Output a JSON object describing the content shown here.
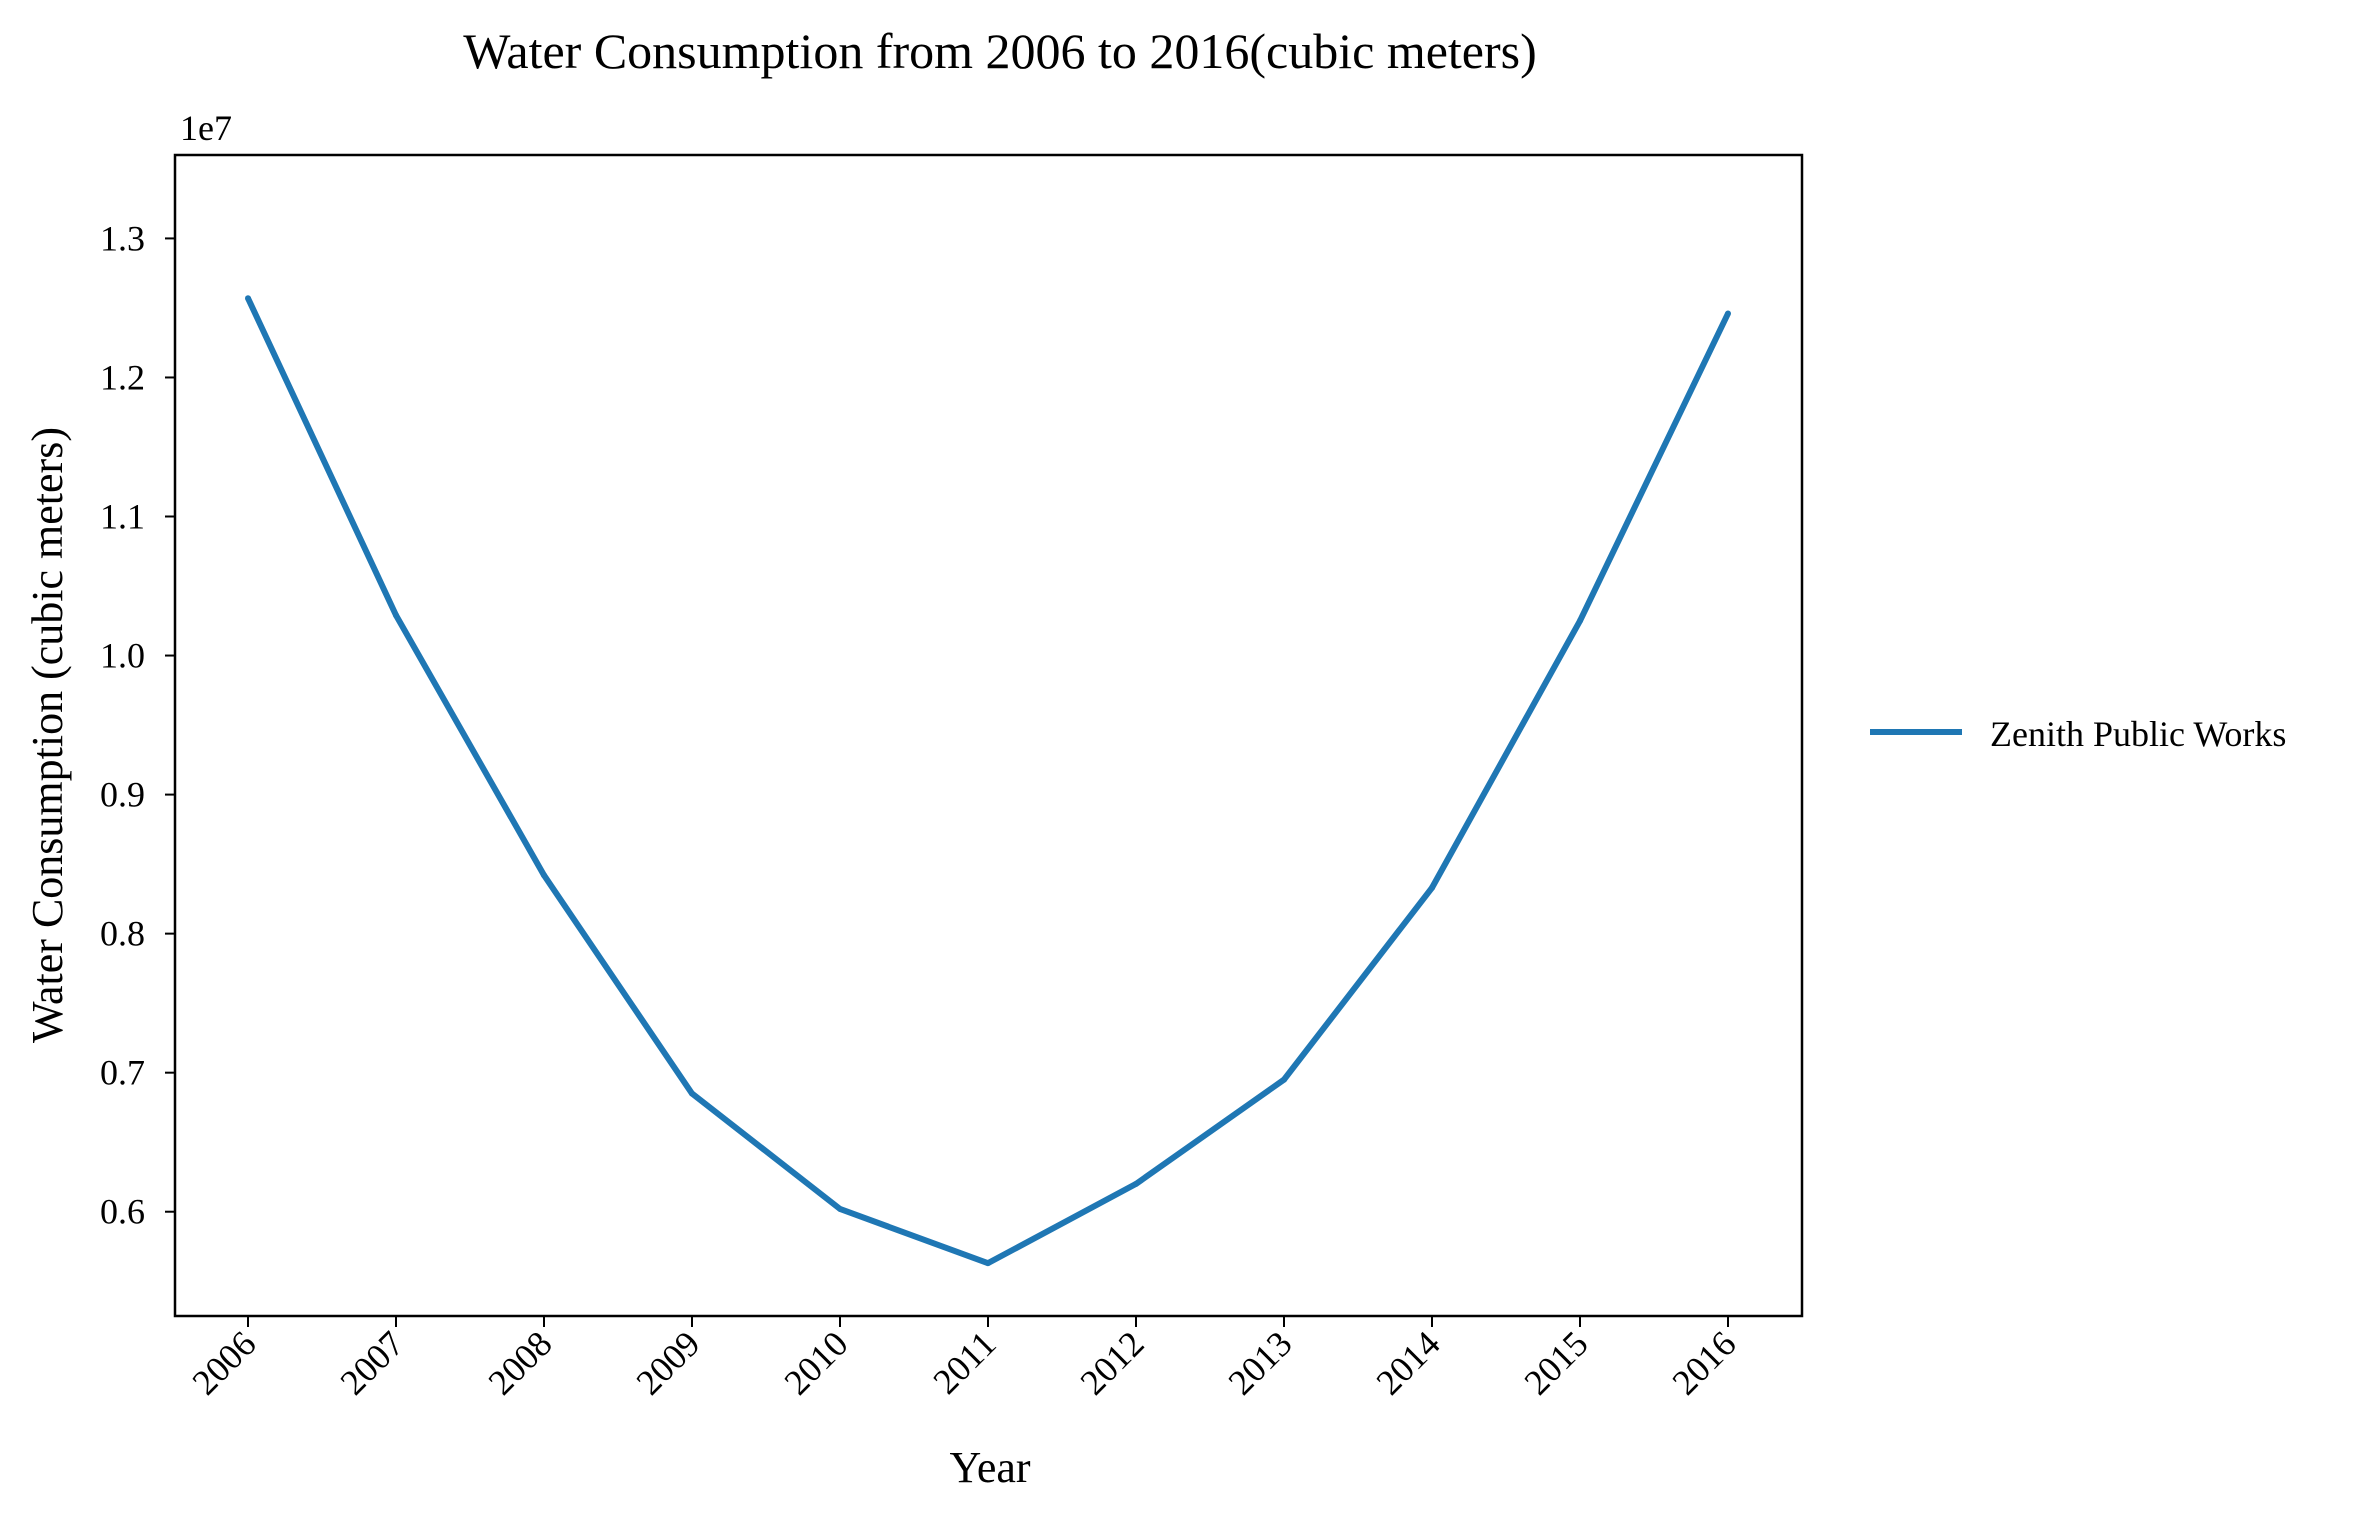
{
  "chart_data": {
    "type": "line",
    "title": "Water Consumption from 2006 to 2016(cubic meters)",
    "xlabel": "Year",
    "ylabel": "Water Consumption (cubic meters)",
    "y_offset_label": "1e7",
    "categories": [
      "2006",
      "2007",
      "2008",
      "2009",
      "2010",
      "2011",
      "2012",
      "2013",
      "2014",
      "2015",
      "2016"
    ],
    "series": [
      {
        "name": "Zenith Public Works",
        "color": "#1f77b4",
        "values": [
          12570000,
          10290000,
          8420000,
          6850000,
          6020000,
          5630000,
          6200000,
          6950000,
          8330000,
          10250000,
          12460000
        ]
      }
    ],
    "y_ticks": [
      0.6,
      0.7,
      0.8,
      0.9,
      1.0,
      1.1,
      1.2,
      1.3
    ],
    "y_tick_labels": [
      "0.6",
      "0.7",
      "0.8",
      "0.9",
      "1.0",
      "1.1",
      "1.2",
      "1.3"
    ],
    "ylim": [
      5250000,
      13600000
    ],
    "grid": false,
    "legend_position": "right"
  }
}
